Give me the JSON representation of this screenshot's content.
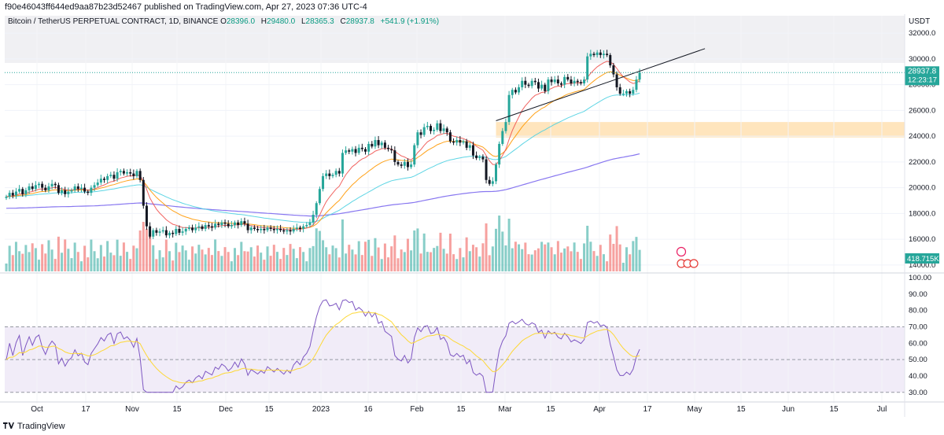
{
  "header": {
    "published_line": "f90e46043ff644ed9aa87b23d52467 published on TradingView.com, Apr 27, 2023 07:36 UTC-4",
    "symbol": "Bitcoin / TetherUS PERPETUAL CONTRACT, 1D, BINANCE",
    "o_label": "O",
    "o_value": "28396.0",
    "h_label": "H",
    "h_value": "29480.0",
    "l_label": "L",
    "l_value": "28365.3",
    "c_label": "C",
    "c_value": "28937.8",
    "change": "+541.9 (+1.91%)"
  },
  "footer": {
    "brand": "TradingView"
  },
  "colors": {
    "up": "#26a69a",
    "down": "#131722",
    "ema_short": "#ef5350",
    "ema_mid": "#ff9800",
    "ema_long": "#4dd0e1",
    "ma_200": "#7b68ee",
    "rsi": "#7e57c2",
    "rsi_ma": "#fdd835",
    "zone": "#ffe0b2",
    "vol_up": "#26a69a",
    "vol_down": "#ef5350"
  },
  "chart_data": [
    {
      "type": "candlestick",
      "currency": "USDT",
      "price_axis_ticks": [
        "32000.0",
        "30000.0",
        "28000.0",
        "26000.0",
        "24000.0",
        "22000.0",
        "20000.0",
        "18000.0",
        "16000.0",
        "14000.0"
      ],
      "ylim": [
        13500,
        32500
      ],
      "x_ticks": [
        "Oct",
        "17",
        "Nov",
        "15",
        "Dec",
        "15",
        "2023",
        "16",
        "Feb",
        "15",
        "Mar",
        "15",
        "Apr",
        "17",
        "May",
        "15",
        "Jun",
        "15",
        "Jul"
      ],
      "last_price_label": "28937.8",
      "countdown_label": "12:23:17",
      "volume_label": "418.715K",
      "close_series": [
        19300,
        19600,
        19400,
        19700,
        19900,
        19500,
        19800,
        20100,
        19900,
        20200,
        20300,
        20000,
        19800,
        20100,
        20300,
        20200,
        19600,
        19800,
        19500,
        19700,
        19800,
        20100,
        19900,
        20000,
        19700,
        19600,
        20000,
        20200,
        20400,
        20700,
        20600,
        20900,
        21000,
        20700,
        21200,
        21300,
        21100,
        21200,
        21100,
        20900,
        21300,
        20600,
        18600,
        17000,
        16200,
        16700,
        16500,
        16600,
        16700,
        16300,
        16500,
        16400,
        16800,
        16500,
        16600,
        16800,
        16900,
        16700,
        16900,
        17000,
        16800,
        17100,
        17000,
        16900,
        17200,
        17100,
        17300,
        17200,
        17000,
        17100,
        17300,
        17100,
        17400,
        17200,
        16700,
        16900,
        16800,
        16700,
        16800,
        16700,
        16900,
        16800,
        16700,
        16800,
        16700,
        16600,
        16700,
        16600,
        16800,
        16900,
        16800,
        17000,
        17100,
        17300,
        17900,
        18800,
        19900,
        20900,
        21100,
        20900,
        21000,
        21300,
        21100,
        22700,
        22900,
        22800,
        23000,
        22700,
        23100,
        23000,
        22800,
        23400,
        23200,
        23700,
        23300,
        23500,
        23100,
        23000,
        22900,
        22000,
        21800,
        21700,
        22000,
        21600,
        21800,
        23300,
        24300,
        24100,
        24700,
        24800,
        24400,
        24500,
        25000,
        24400,
        24600,
        24300,
        23600,
        23500,
        23700,
        23500,
        23600,
        23100,
        23300,
        22500,
        22300,
        22400,
        22200,
        20600,
        20300,
        20500,
        21800,
        23400,
        24400,
        25100,
        27200,
        27600,
        27400,
        27800,
        28300,
        28000,
        27900,
        28300,
        28200,
        27700,
        28000,
        27500,
        28400,
        28200,
        28400,
        28100,
        28000,
        28600,
        28400,
        28100,
        28300,
        28200,
        28100,
        28400,
        30200,
        30400,
        30300,
        30500,
        30300,
        30400,
        30300,
        29500,
        28800,
        27800,
        27300,
        27300,
        27500,
        27300,
        27600,
        28400,
        28937.8
      ],
      "resistance_line": {
        "x_from_index": 150,
        "y_from": 25200,
        "x_to_index": 214,
        "y_to": 30800
      },
      "support_zone": {
        "from": 23900,
        "to": 25100
      },
      "rsi": {
        "axis_ticks": [
          "100.00",
          "90.00",
          "80.00",
          "70.00",
          "60.00",
          "50.00",
          "40.00",
          "30.00"
        ],
        "ylim": [
          27,
          100
        ],
        "upper": 70,
        "mid": 50,
        "lower": 30
      }
    }
  ]
}
